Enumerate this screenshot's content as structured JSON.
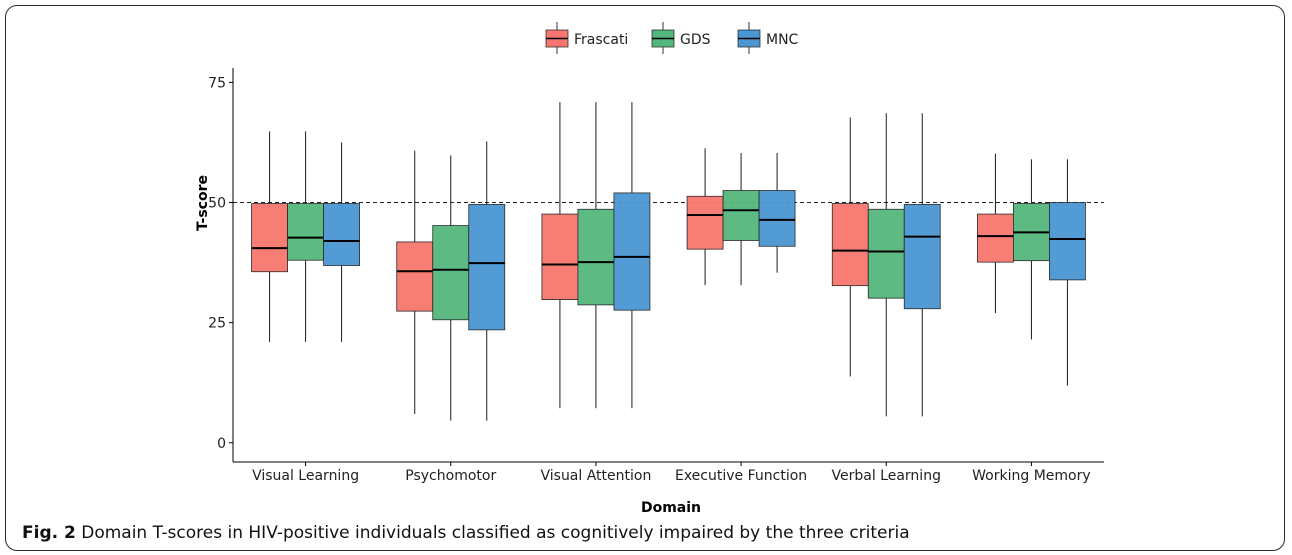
{
  "chart_data": {
    "type": "boxplot",
    "xlabel": "Domain",
    "ylabel": "T-score",
    "ylim": [
      -4,
      78
    ],
    "yticks": [
      0,
      25,
      50,
      75
    ],
    "reference_line": 50,
    "grid": false,
    "legend_position": "top",
    "categories": [
      "Visual Learning",
      "Psychomotor",
      "Visual Attention",
      "Executive Function",
      "Verbal Learning",
      "Working Memory"
    ],
    "series": [
      {
        "name": "Frascati",
        "color": "#f8766d",
        "boxes": [
          {
            "min": 21,
            "q1": 35.6,
            "median": 40.5,
            "q3": 49.8,
            "max": 64.8
          },
          {
            "min": 6,
            "q1": 27.4,
            "median": 35.7,
            "q3": 41.8,
            "max": 60.8
          },
          {
            "min": 7.2,
            "q1": 29.8,
            "median": 37.1,
            "q3": 47.6,
            "max": 70.9
          },
          {
            "min": 32.8,
            "q1": 40.3,
            "median": 47.4,
            "q3": 51.3,
            "max": 61.3
          },
          {
            "min": 13.8,
            "q1": 32.7,
            "median": 40,
            "q3": 49.8,
            "max": 67.7
          },
          {
            "min": 27,
            "q1": 37.6,
            "median": 43,
            "q3": 47.6,
            "max": 60.2
          }
        ]
      },
      {
        "name": "GDS",
        "color": "#53b67b",
        "boxes": [
          {
            "min": 21,
            "q1": 38,
            "median": 42.7,
            "q3": 49.8,
            "max": 64.8
          },
          {
            "min": 4.6,
            "q1": 25.6,
            "median": 36,
            "q3": 45.2,
            "max": 59.8
          },
          {
            "min": 7.2,
            "q1": 28.7,
            "median": 37.6,
            "q3": 48.6,
            "max": 70.9
          },
          {
            "min": 32.8,
            "q1": 42.1,
            "median": 48.4,
            "q3": 52.5,
            "max": 60.3
          },
          {
            "min": 5.5,
            "q1": 30.1,
            "median": 39.8,
            "q3": 48.6,
            "max": 68.6
          },
          {
            "min": 21.5,
            "q1": 37.9,
            "median": 43.8,
            "q3": 49.8,
            "max": 59
          }
        ]
      },
      {
        "name": "MNC",
        "color": "#4a96d3",
        "boxes": [
          {
            "min": 21,
            "q1": 36.9,
            "median": 42,
            "q3": 49.8,
            "max": 62.5
          },
          {
            "min": 4.6,
            "q1": 23.5,
            "median": 37.4,
            "q3": 49.6,
            "max": 62.7
          },
          {
            "min": 7.2,
            "q1": 27.6,
            "median": 38.7,
            "q3": 52,
            "max": 70.9
          },
          {
            "min": 35.4,
            "q1": 40.9,
            "median": 46.4,
            "q3": 52.5,
            "max": 60.3
          },
          {
            "min": 5.5,
            "q1": 27.9,
            "median": 42.9,
            "q3": 49.6,
            "max": 68.6
          },
          {
            "min": 11.9,
            "q1": 33.9,
            "median": 42.4,
            "q3": 50,
            "max": 59
          }
        ]
      }
    ]
  },
  "caption": {
    "label": "Fig. 2",
    "text": " Domain T-scores in HIV-positive individuals classified as cognitively impaired by the three criteria"
  }
}
